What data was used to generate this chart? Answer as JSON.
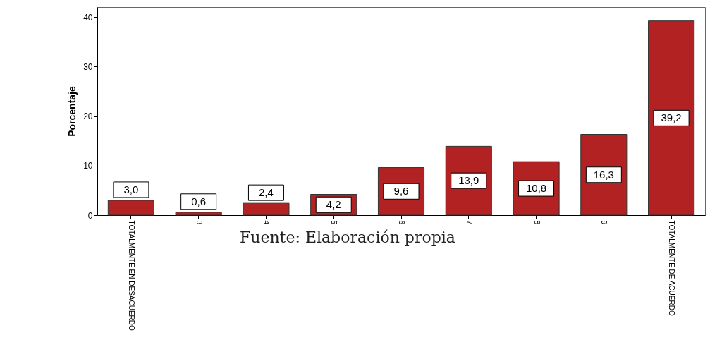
{
  "chart_data": {
    "type": "bar",
    "categories": [
      "TOTALMENTE EN DESACUERDO",
      "3",
      "4",
      "5",
      "6",
      "7",
      "8",
      "9",
      "TOTALMENTE DE ACUERDO"
    ],
    "values": [
      3.0,
      0.6,
      2.4,
      4.2,
      9.6,
      13.9,
      10.8,
      16.3,
      39.2
    ],
    "value_labels": [
      "3,0",
      "0,6",
      "2,4",
      "4,2",
      "9,6",
      "13,9",
      "10,8",
      "16,3",
      "39,2"
    ],
    "color": "#b22222",
    "ylabel": "Porcentaje",
    "ylim": [
      0,
      42
    ],
    "yticks": [
      0,
      10,
      20,
      30,
      40
    ],
    "grid": false,
    "annotations": [
      "Fuente: Elaboración propia"
    ]
  }
}
